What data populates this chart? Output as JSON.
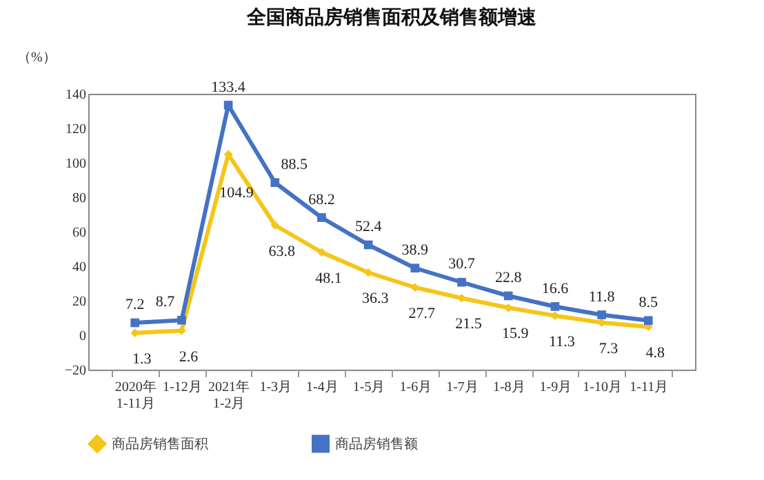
{
  "chart_data": {
    "type": "line",
    "title": "全国商品房销售面积及销售额增速",
    "ylabel": "（%）",
    "categories": [
      "2020年\n1-11月",
      "1-12月",
      "2021年\n1-2月",
      "1-3月",
      "1-4月",
      "1-5月",
      "1-6月",
      "1-7月",
      "1-8月",
      "1-9月",
      "1-10月",
      "1-11月"
    ],
    "series": [
      {
        "name": "商品房销售面积",
        "color": "#f5c518",
        "marker": "diamond",
        "values": [
          1.3,
          2.6,
          104.9,
          63.8,
          48.1,
          36.3,
          27.7,
          21.5,
          15.9,
          11.3,
          7.3,
          4.8
        ]
      },
      {
        "name": "商品房销售额",
        "color": "#4472c4",
        "marker": "square",
        "values": [
          7.2,
          8.7,
          133.4,
          88.5,
          68.2,
          52.4,
          38.9,
          30.7,
          22.8,
          16.6,
          11.8,
          8.5
        ]
      }
    ],
    "ylim": [
      -20,
      140
    ],
    "yticks": [
      -20,
      0,
      20,
      40,
      60,
      80,
      100,
      120,
      140
    ],
    "grid": false,
    "legend": "bottom",
    "data_labels": true
  }
}
